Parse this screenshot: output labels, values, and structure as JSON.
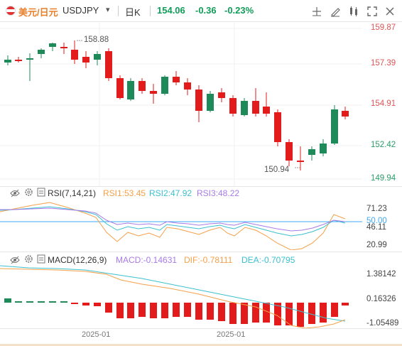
{
  "header": {
    "pair_cn": "美元/日元",
    "symbol": "USDJPY",
    "dropdown": "▾",
    "period": "日K",
    "price": "154.06",
    "change": "-0.36",
    "change_pct": "-0.23%",
    "toolbar_icons": [
      "crosshair-icon",
      "draw-tools-icon",
      "indicator-icon",
      "fullscreen-icon",
      "close-icon"
    ]
  },
  "main_chart": {
    "y_ticks": [
      "159.87",
      "157.39",
      "154.91",
      "152.42",
      "149.94"
    ],
    "high_label": "158.88",
    "low_label": "150.94",
    "up_color": "#1e8a5a",
    "down_color": "#e41b1b"
  },
  "rsi": {
    "title": "RSI(7,14,21)",
    "rsi1": "RSI1:53.45",
    "rsi2": "RSI2:47.92",
    "rsi3": "RSI3:48.22",
    "y_ticks": [
      "71.23",
      "50.00",
      "46.11",
      "20.99"
    ],
    "colors": {
      "rsi1": "#f5a04a",
      "rsi2": "#3cc0cf",
      "rsi3": "#a77be6",
      "ref": "#3fa9f5"
    }
  },
  "macd": {
    "title": "MACD(12,26,9)",
    "macd": "MACD:-0.14631",
    "dif": "DIF:-0.78111",
    "dea": "DEA:-0.70795",
    "y_ticks": [
      "1.38142",
      "0.16326",
      "-1.05489"
    ],
    "colors": {
      "macd": "#a77be6",
      "dif": "#f5a04a",
      "dea": "#3cc0cf"
    }
  },
  "x_axis": {
    "labels": [
      "2025-01",
      "2025-01"
    ]
  }
}
